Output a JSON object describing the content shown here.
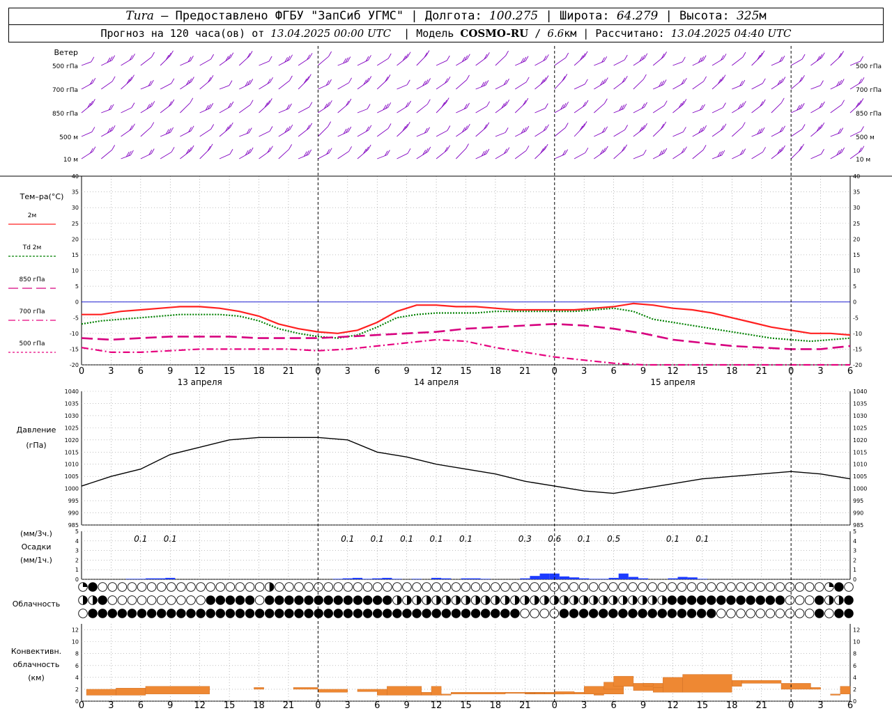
{
  "header": {
    "station_name": "Tura",
    "provided_by": " – Предоставлено ФГБУ \"ЗапСиб УГМС\" | Долгота: ",
    "longitude": "100.275",
    "lat_label": " | Широта: ",
    "latitude": "64.279",
    "alt_label": " | Высота: ",
    "altitude": "325",
    "alt_unit": "м",
    "forecast_label": "Прогноз на 120 часа(ов) от ",
    "forecast_start": "13.04.2025 00:00 UTC",
    "model_label": "  | Модель ",
    "model_name": "COSMO-RU",
    "model_sep": " / ",
    "resolution": "6.6",
    "resolution_unit": "км",
    "calc_label": " | Рассчитано: ",
    "calculated": "13.04.2025 04:40 UTC"
  },
  "time_axis": {
    "hour_labels": [
      "0",
      "3",
      "6",
      "9",
      "12",
      "15",
      "18",
      "21",
      "0",
      "3",
      "6",
      "9",
      "12",
      "15",
      "18",
      "21",
      "0",
      "3",
      "6",
      "9",
      "12",
      "15",
      "18",
      "21",
      "0",
      "3",
      "6"
    ],
    "day_labels": [
      "13 апреля",
      "14 апреля",
      "15 апреля"
    ]
  },
  "wind_panel": {
    "title": "Ветер",
    "levels": [
      "500 гПа",
      "700 гПа",
      "850 гПа",
      "500 м",
      "10  м"
    ]
  },
  "temperature_panel": {
    "title": "Тем–ра(°C)",
    "legend": [
      {
        "label": "2м",
        "color": "#ff2020"
      },
      {
        "label": "Td  2м",
        "color": "#008000"
      },
      {
        "label": "850 гПа",
        "color": "#d7007f"
      },
      {
        "label": "700 гПа",
        "color": "#e6007e"
      },
      {
        "label": "500 гПа",
        "color": "#e6007e"
      }
    ],
    "y_ticks": [
      "40",
      "35",
      "30",
      "25",
      "20",
      "15",
      "10",
      "5",
      "0",
      "-5",
      "-10",
      "-15",
      "-20"
    ]
  },
  "pressure_panel": {
    "title": "Давление",
    "unit": "(гПа)",
    "y_ticks": [
      "1040",
      "1035",
      "1030",
      "1025",
      "1020",
      "1015",
      "1010",
      "1005",
      "1000",
      "995",
      "990",
      "985"
    ]
  },
  "precip_panel": {
    "unit_3h": "(мм/3ч.)",
    "title": "Осадки",
    "unit_1h": "(мм/1ч.)",
    "y_ticks": [
      "5",
      "4",
      "3",
      "2",
      "1",
      "0"
    ],
    "amounts": [
      {
        "x": 6,
        "label": "0.1"
      },
      {
        "x": 9,
        "label": "0.1"
      },
      {
        "x": 27,
        "label": "0.1"
      },
      {
        "x": 30,
        "label": "0.1"
      },
      {
        "x": 33,
        "label": "0.1"
      },
      {
        "x": 36,
        "label": "0.1"
      },
      {
        "x": 39,
        "label": "0.1"
      },
      {
        "x": 45,
        "label": "0.3"
      },
      {
        "x": 48,
        "label": "0.6"
      },
      {
        "x": 51,
        "label": "0.1"
      },
      {
        "x": 54,
        "label": "0.5"
      },
      {
        "x": 60,
        "label": "0.1"
      },
      {
        "x": 63,
        "label": "0.1"
      }
    ]
  },
  "cloud_panel": {
    "title": "Облачность"
  },
  "convective_panel": {
    "title_1": "Конвективн.",
    "title_2": "облачность",
    "unit": "(км)",
    "y_ticks": [
      "12",
      "10",
      "8",
      "6",
      "4",
      "2",
      "0"
    ]
  },
  "chart_data": [
    {
      "type": "line",
      "title": "Тем–ра(°C)",
      "xlabel": "",
      "ylabel": "Тем–ра(°C)",
      "xlim": [
        0,
        78
      ],
      "ylim": [
        -20,
        40
      ],
      "series": [
        {
          "name": "2м",
          "color": "#ff2020",
          "dash": "solid",
          "x": [
            0,
            2,
            4,
            6,
            8,
            10,
            12,
            14,
            16,
            18,
            20,
            22,
            24,
            26,
            28,
            30,
            32,
            34,
            36,
            38,
            40,
            42,
            44,
            46,
            48,
            50,
            52,
            54,
            56,
            58,
            60,
            62,
            64,
            66,
            68,
            70,
            72,
            74,
            76,
            78
          ],
          "values": [
            -4,
            -4,
            -3,
            -2.5,
            -2,
            -1.5,
            -1.5,
            -2,
            -3,
            -4.5,
            -7,
            -8.5,
            -9.5,
            -10,
            -9,
            -6.5,
            -3,
            -1,
            -1,
            -1.5,
            -1.5,
            -2,
            -2.5,
            -2.5,
            -2.5,
            -2.5,
            -2,
            -1.5,
            -0.5,
            -1,
            -2,
            -2.5,
            -3.5,
            -5,
            -6.5,
            -8,
            -9,
            -10,
            -10,
            -10.5
          ]
        },
        {
          "name": "Td  2м",
          "color": "#008000",
          "dash": "dot",
          "x": [
            0,
            2,
            4,
            6,
            8,
            10,
            12,
            14,
            16,
            18,
            20,
            22,
            24,
            26,
            28,
            30,
            32,
            34,
            36,
            38,
            40,
            42,
            44,
            46,
            48,
            50,
            52,
            54,
            56,
            58,
            60,
            62,
            64,
            66,
            68,
            70,
            72,
            74,
            76,
            78
          ],
          "values": [
            -7,
            -6,
            -5.5,
            -5,
            -4.5,
            -4,
            -4,
            -4,
            -4.5,
            -6,
            -8.5,
            -10,
            -11,
            -11.5,
            -10.5,
            -8,
            -5,
            -4,
            -3.5,
            -3.5,
            -3.5,
            -3,
            -3,
            -3,
            -3,
            -3,
            -2.5,
            -2,
            -3,
            -5.5,
            -6.5,
            -7.5,
            -8.5,
            -9.5,
            -10.5,
            -11.5,
            -12,
            -12.5,
            -12,
            -11.5
          ]
        },
        {
          "name": "850 гПа",
          "color": "#d7007f",
          "dash": "longdash",
          "x": [
            0,
            3,
            6,
            9,
            12,
            15,
            18,
            21,
            24,
            27,
            30,
            33,
            36,
            39,
            42,
            45,
            48,
            51,
            54,
            57,
            60,
            63,
            66,
            69,
            72,
            75,
            78
          ],
          "values": [
            -11.5,
            -12,
            -11.5,
            -11,
            -11,
            -11,
            -11.5,
            -11.5,
            -11.5,
            -11,
            -10.5,
            -10,
            -9.5,
            -8.5,
            -8,
            -7.5,
            -7,
            -7.5,
            -8.5,
            -10,
            -12,
            -13,
            -14,
            -14.5,
            -15,
            -15,
            -14
          ]
        },
        {
          "name": "700 гПа",
          "color": "#e6007e",
          "dash": "dashdot",
          "x": [
            0,
            3,
            6,
            9,
            12,
            15,
            18,
            21,
            24,
            27,
            30,
            33,
            36,
            39,
            42,
            45,
            48,
            51,
            54,
            57,
            60,
            63,
            66,
            69,
            72,
            75,
            78
          ],
          "values": [
            -14.5,
            -16,
            -16,
            -15.5,
            -15,
            -15,
            -15,
            -15,
            -15.5,
            -15,
            -14,
            -13,
            -12,
            -12.5,
            -14.5,
            -16,
            -17.5,
            -18.5,
            -19.5,
            -20.5,
            -21,
            -21.5,
            -21.5,
            -21.5,
            -21.5,
            -21.5,
            -21.5
          ]
        }
      ]
    },
    {
      "type": "line",
      "title": "Давление",
      "xlabel": "",
      "ylabel": "(гПа)",
      "xlim": [
        0,
        78
      ],
      "ylim": [
        985,
        1040
      ],
      "series": [
        {
          "name": "Давление",
          "color": "#000000",
          "x": [
            0,
            3,
            6,
            9,
            12,
            15,
            18,
            21,
            24,
            27,
            30,
            33,
            36,
            39,
            42,
            45,
            48,
            51,
            54,
            57,
            60,
            63,
            66,
            69,
            72,
            75,
            78
          ],
          "values": [
            1001,
            1005,
            1008,
            1014,
            1017,
            1020,
            1021,
            1021,
            1021,
            1020,
            1015,
            1013,
            1010,
            1008,
            1006,
            1003,
            1001,
            999,
            998,
            1000,
            1002,
            1004,
            1005,
            1006,
            1007,
            1006,
            1004
          ]
        }
      ]
    },
    {
      "type": "bar",
      "title": "Осадки",
      "xlabel": "",
      "ylabel": "(мм/1ч.)",
      "xlim": [
        0,
        78
      ],
      "ylim": [
        0,
        5
      ],
      "x": [
        4,
        5,
        6,
        7,
        8,
        9,
        10,
        11,
        12,
        13,
        14,
        15,
        16,
        17,
        18,
        19,
        20,
        21,
        22,
        23,
        24,
        25,
        26,
        27,
        28,
        29,
        30,
        31,
        32,
        33,
        34,
        35,
        36,
        37,
        38,
        39,
        40,
        41,
        42,
        43,
        44,
        45,
        46,
        47,
        48,
        49,
        50,
        51,
        52,
        53,
        54,
        55,
        56,
        57,
        58,
        59,
        60,
        61,
        62,
        63,
        64,
        65,
        66
      ],
      "values": [
        0,
        0.05,
        0.05,
        0.1,
        0.1,
        0.15,
        0,
        0,
        0,
        0,
        0,
        0,
        0,
        0,
        0,
        0,
        0,
        0,
        0,
        0,
        0,
        0,
        0.05,
        0.1,
        0.15,
        0.05,
        0.1,
        0.15,
        0.05,
        0,
        0.05,
        0,
        0.15,
        0.1,
        0,
        0.1,
        0.1,
        0.05,
        0,
        0,
        0,
        0.1,
        0.35,
        0.6,
        0.6,
        0.3,
        0.2,
        0.1,
        0.05,
        0.05,
        0.15,
        0.6,
        0.25,
        0.1,
        0,
        0,
        0.1,
        0.25,
        0.2,
        0.05,
        0,
        0,
        0
      ]
    },
    {
      "type": "bar",
      "title": "Конвективн. облачность",
      "xlabel": "",
      "ylabel": "(км)",
      "xlim": [
        0,
        78
      ],
      "ylim": [
        0,
        13
      ],
      "series": [
        {
          "name": "Конвективн. облачность",
          "color": "#ee8833",
          "intervals": [
            [
              0.5,
              3.5,
              1,
              2
            ],
            [
              3.5,
              6.5,
              1,
              2.2
            ],
            [
              6.5,
              13,
              1.2,
              2.5
            ],
            [
              17.5,
              18.5,
              2,
              2.3
            ],
            [
              21.5,
              24,
              2,
              2.3
            ],
            [
              24,
              27,
              1.5,
              2
            ],
            [
              28,
              30,
              1.6,
              2
            ],
            [
              30,
              31,
              1,
              2
            ],
            [
              31,
              34.5,
              1,
              2.5
            ],
            [
              34.5,
              35.5,
              1,
              1.5
            ],
            [
              35.5,
              36.5,
              1,
              2.5
            ],
            [
              36.5,
              37.5,
              1,
              1.2
            ],
            [
              37.5,
              43,
              1.2,
              1.5
            ],
            [
              43,
              46,
              1.3,
              1.5
            ],
            [
              46,
              52,
              1.2,
              1.5
            ],
            [
              52,
              53,
              1,
              1.5
            ],
            [
              53,
              54,
              1.2,
              1.5
            ],
            [
              54,
              55,
              1.2,
              1.5
            ],
            [
              45,
              47,
              1.2,
              1.5
            ],
            [
              45.5,
              49,
              1.2,
              1.4
            ],
            [
              48,
              49,
              1.2,
              1.3
            ],
            [
              48,
              50,
              1.2,
              1.6
            ],
            [
              46,
              47,
              1.2,
              1.4
            ],
            [
              45,
              46,
              1.3,
              1.4
            ],
            [
              51,
              52,
              1.2,
              1.4
            ],
            [
              52,
              53,
              1.2,
              1.3
            ],
            [
              51,
              55,
              1.2,
              2.5
            ],
            [
              53,
              55,
              2,
              3.2
            ],
            [
              54,
              56,
              2.5,
              4.2
            ],
            [
              56,
              59,
              1.8,
              3
            ],
            [
              57,
              58,
              2.5,
              3
            ],
            [
              58,
              59,
              1.5,
              2.3
            ],
            [
              59,
              61,
              1.5,
              4
            ],
            [
              61,
              66,
              1.5,
              4.5
            ],
            [
              66,
              67,
              2.5,
              3.5
            ],
            [
              67,
              71,
              3,
              3.5
            ],
            [
              71,
              74,
              2,
              3
            ],
            [
              74,
              75,
              2,
              2.3
            ],
            [
              76,
              77,
              1,
              1.2
            ],
            [
              77,
              78,
              1.2,
              2.5
            ]
          ]
        }
      ]
    }
  ]
}
